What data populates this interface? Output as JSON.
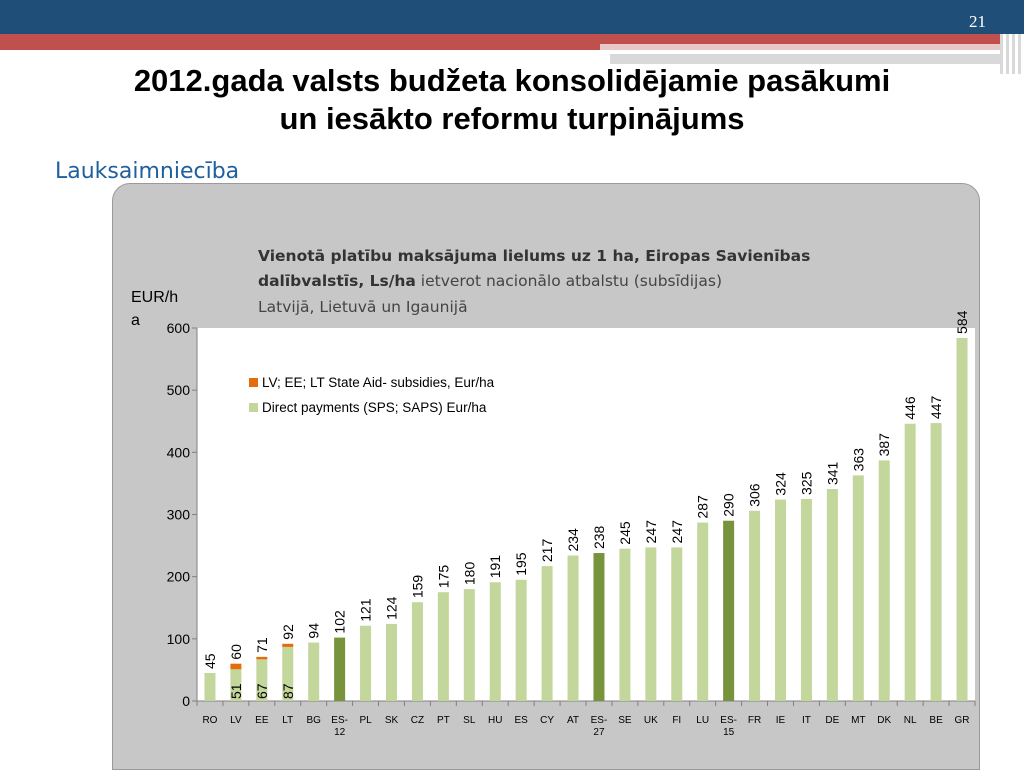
{
  "slide": {
    "number": "21",
    "title_line1": "2012.gada valsts budžeta konsolidējamie pasākumi",
    "title_line2": "un iesākto reformu turpinājums",
    "subtitle": "Lauksaimniecība"
  },
  "chart_data": {
    "type": "bar",
    "title_bold_line1": "Vienotā platību maksājuma lielums uz 1 ha, Eiropas Savienības",
    "title_bold_line2": "dalībvalstīs, Ls/ha",
    "title_normal_line2": " ietverot nacionālo atbalstu (subsīdijas)",
    "title_line3": "Latvijā, Lietuvā un Igaunijā",
    "ylabel_line1": "EUR/h",
    "ylabel_line2": "a",
    "ylim": [
      0,
      600
    ],
    "yticks": [
      "0",
      "100",
      "200",
      "300",
      "400",
      "500",
      "600"
    ],
    "categories": [
      "RO",
      "LV",
      "EE",
      "LT",
      "BG",
      "ES-12",
      "PL",
      "SK",
      "CZ",
      "PT",
      "SL",
      "HU",
      "ES",
      "CY",
      "AT",
      "ES-27",
      "SE",
      "UK",
      "FI",
      "LU",
      "ES-15",
      "FR",
      "IE",
      "IT",
      "DE",
      "MT",
      "DK",
      "NL",
      "BE",
      "GR"
    ],
    "category_lines": [
      [
        "RO"
      ],
      [
        "LV"
      ],
      [
        "EE"
      ],
      [
        "LT"
      ],
      [
        "BG"
      ],
      [
        "ES-",
        "12"
      ],
      [
        "PL"
      ],
      [
        "SK"
      ],
      [
        "CZ"
      ],
      [
        "PT"
      ],
      [
        "SL"
      ],
      [
        "HU"
      ],
      [
        "ES"
      ],
      [
        "CY"
      ],
      [
        "AT"
      ],
      [
        "ES-",
        "27"
      ],
      [
        "SE"
      ],
      [
        "UK"
      ],
      [
        "FI"
      ],
      [
        "LU"
      ],
      [
        "ES-",
        "15"
      ],
      [
        "FR"
      ],
      [
        "IE"
      ],
      [
        "IT"
      ],
      [
        "DE"
      ],
      [
        "MT"
      ],
      [
        "DK"
      ],
      [
        "NL"
      ],
      [
        "BE"
      ],
      [
        "GR"
      ]
    ],
    "highlight": [
      "ES-12",
      "ES-27",
      "ES-15"
    ],
    "series": [
      {
        "name": "Direct payments (SPS; SAPS) Eur/ha",
        "color": "#c3d69b",
        "highlight_color": "#77933c",
        "values": [
          45,
          51,
          67,
          87,
          94,
          102,
          121,
          124,
          159,
          175,
          180,
          191,
          195,
          217,
          234,
          238,
          245,
          247,
          247,
          287,
          290,
          306,
          324,
          325,
          341,
          363,
          387,
          446,
          447,
          584
        ],
        "labels": [
          "45",
          "51",
          "67",
          "87",
          "94",
          "102",
          "121",
          "124",
          "159",
          "175",
          "180",
          "191",
          "195",
          "217",
          "234",
          "238",
          "245",
          "247",
          "247",
          "287",
          "290",
          "306",
          "324",
          "325",
          "341",
          "363",
          "387",
          "446",
          "447",
          "584"
        ]
      },
      {
        "name": "LV; EE; LT State Aid- subsidies, Eur/ha",
        "color": "#e46c0a",
        "values": [
          null,
          9,
          4,
          5,
          null,
          null,
          null,
          null,
          null,
          null,
          null,
          null,
          null,
          null,
          null,
          null,
          null,
          null,
          null,
          null,
          null,
          null,
          null,
          null,
          null,
          null,
          null,
          null,
          null,
          null
        ]
      }
    ],
    "total_labels": {
      "LV": "60",
      "EE": "71",
      "LT": "92"
    },
    "legend": "top-left",
    "grid": false
  }
}
